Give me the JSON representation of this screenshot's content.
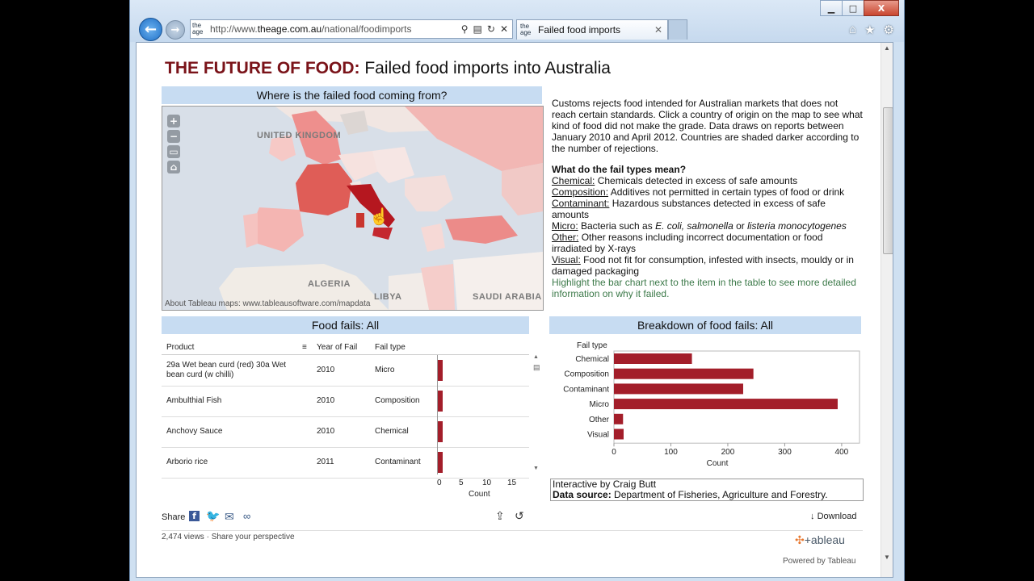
{
  "browser": {
    "url_prefix": "http://www.",
    "url_domain": "theage.com.au",
    "url_path": "/national/foodimports",
    "favicon": "the age",
    "tab_title": "Failed food imports",
    "win_min": "▁",
    "win_max": "□",
    "win_close": "X"
  },
  "page": {
    "title_bold": "THE FUTURE OF FOOD:",
    "title_rest": " Failed food imports into Australia",
    "map_header": "Where is the failed food coming from?",
    "map_labels": [
      "UNITED KINGDOM",
      "ALGERIA",
      "LIBYA",
      "SAUDI ARABIA"
    ],
    "map_footer": "About Tableau maps: www.tableausoftware.com/mapdata",
    "intro": "Customs rejects food intended for Australian markets that does not reach certain standards. Click a country of origin on the map to see what kind of food did not make the grade. Data draws on reports between January 2010 and April 2012. Countries are shaded darker according to the number of rejections.",
    "fail_heading": "What do the fail types mean?",
    "fail_types": [
      {
        "term": "Chemical:",
        "def": " Chemicals detected in excess of safe amounts"
      },
      {
        "term": "Composition:",
        "def": " Additives not permitted in certain types of food or drink"
      },
      {
        "term": "Contaminant:",
        "def": " Hazardous substances detected in excess of safe amounts"
      },
      {
        "term": "Micro:",
        "def_a": " Bacteria such as ",
        "ital1": "E. coli, salmonella",
        "def_b": " or ",
        "ital2": "listeria monocytogenes"
      },
      {
        "term": "Other:",
        "def": " Other reasons including incorrect documentation or food irradiated by X-rays"
      },
      {
        "term": "Visual:",
        "def": " Food not fit for consumption, infested with insects, mouldy or in damaged packaging"
      }
    ],
    "hint": "Highlight the bar chart next to the item in the table to see more detailed information on why it failed.",
    "table_header": "Food fails: All",
    "col_product": "Product",
    "col_year": "Year of Fail",
    "col_type": "Fail type",
    "rows": [
      {
        "product": "29a Wet bean curd (red) 30a Wet bean curd (w chilli)",
        "year": "2010",
        "type": "Micro",
        "count": 1
      },
      {
        "product": "Ambulthial Fish",
        "year": "2010",
        "type": "Composition",
        "count": 1
      },
      {
        "product": "Anchovy Sauce",
        "year": "2010",
        "type": "Chemical",
        "count": 1
      },
      {
        "product": "Arborio rice",
        "year": "2011",
        "type": "Contaminant",
        "count": 1
      }
    ],
    "count_ticks": [
      "0",
      "5",
      "10",
      "15"
    ],
    "count_label": "Count",
    "breakdown_header": "Breakdown of food fails: All",
    "breakdown_axis_title": "Fail type",
    "credit_line1": "Interactive by Craig Butt",
    "credit_label": "Data source:",
    "credit_source": " Department of Fisheries, Agriculture and Forestry.",
    "share_label": "Share",
    "download_label": "Download",
    "views": "2,474 views",
    "share_perspective": "Share your perspective",
    "logo_text": "+ableau",
    "powered": "Powered by Tableau"
  },
  "chart_data": {
    "type": "bar",
    "orientation": "horizontal",
    "categories": [
      "Chemical",
      "Composition",
      "Contaminant",
      "Micro",
      "Other",
      "Visual"
    ],
    "values": [
      137,
      245,
      227,
      393,
      16,
      17
    ],
    "xlabel": "Count",
    "ylabel": "Fail type",
    "xticks": [
      "0",
      "100",
      "200",
      "300",
      "400"
    ],
    "xlim": [
      0,
      420
    ],
    "bar_color": "#a31e2a"
  }
}
